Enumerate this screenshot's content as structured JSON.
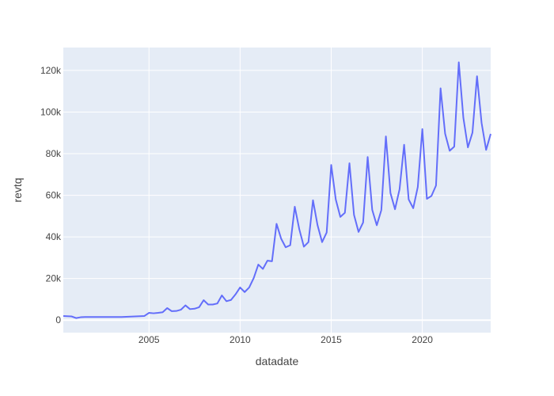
{
  "chart_data": {
    "type": "line",
    "title": "",
    "xlabel": "datadate",
    "ylabel": "revtq",
    "xlim": [
      2000.3,
      2023.75
    ],
    "ylim": [
      -6000,
      131000
    ],
    "x_ticks": [
      2005,
      2010,
      2015,
      2020
    ],
    "x_tick_labels": [
      "2005",
      "2010",
      "2015",
      "2020"
    ],
    "y_ticks": [
      0,
      20000,
      40000,
      60000,
      80000,
      100000,
      120000
    ],
    "y_tick_labels": [
      "0",
      "20k",
      "40k",
      "60k",
      "80k",
      "100k",
      "120k"
    ],
    "grid": true,
    "legend": "none",
    "colors": {
      "line": "#636efa",
      "plot_bg": "#e5ecf6",
      "grid": "#ffffff"
    },
    "series": [
      {
        "x": [
          2000.3,
          2000.5,
          2000.75,
          2001.0,
          2001.25,
          2001.5,
          2001.75,
          2002.0,
          2002.25,
          2002.5,
          2002.75,
          2003.0,
          2003.25,
          2003.5,
          2003.75,
          2004.0,
          2004.25,
          2004.5,
          2004.75,
          2005.0,
          2005.25,
          2005.5,
          2005.75,
          2006.0,
          2006.25,
          2006.5,
          2006.75,
          2007.0,
          2007.25,
          2007.5,
          2007.75,
          2008.0,
          2008.25,
          2008.5,
          2008.75,
          2009.0,
          2009.25,
          2009.5,
          2009.75,
          2010.0,
          2010.25,
          2010.5,
          2010.75,
          2011.0,
          2011.25,
          2011.5,
          2011.75,
          2012.0,
          2012.25,
          2012.5,
          2012.75,
          2013.0,
          2013.25,
          2013.5,
          2013.75,
          2014.0,
          2014.25,
          2014.5,
          2014.75,
          2015.0,
          2015.25,
          2015.5,
          2015.75,
          2016.0,
          2016.25,
          2016.5,
          2016.75,
          2017.0,
          2017.25,
          2017.5,
          2017.75,
          2018.0,
          2018.25,
          2018.5,
          2018.75,
          2019.0,
          2019.25,
          2019.5,
          2019.75,
          2020.0,
          2020.25,
          2020.5,
          2020.75,
          2021.0,
          2021.25,
          2021.5,
          2021.75,
          2022.0,
          2022.25,
          2022.5,
          2022.75,
          2023.0,
          2023.25,
          2023.5,
          2023.75
        ],
        "y": [
          2000,
          1900,
          1800,
          1000,
          1400,
          1500,
          1500,
          1500,
          1500,
          1500,
          1500,
          1500,
          1500,
          1500,
          1600,
          1700,
          1800,
          1900,
          2000,
          3500,
          3300,
          3500,
          3800,
          5800,
          4300,
          4400,
          5000,
          7100,
          5300,
          5500,
          6200,
          9600,
          7500,
          7500,
          8000,
          11900,
          9100,
          9700,
          12400,
          15700,
          13500,
          15700,
          20300,
          26700,
          24600,
          28600,
          28300,
          46300,
          39200,
          35000,
          36000,
          54500,
          43600,
          35300,
          37500,
          57600,
          45600,
          37500,
          42100,
          74600,
          58000,
          49600,
          51600,
          75400,
          50600,
          42400,
          46900,
          78400,
          53000,
          45600,
          52900,
          88300,
          61100,
          53300,
          62900,
          84300,
          58000,
          53800,
          64000,
          91800,
          58300,
          59700,
          64700,
          111400,
          89600,
          81400,
          83400,
          123900,
          97300,
          83000,
          90100,
          117200,
          94800,
          81800,
          89500
        ]
      }
    ]
  }
}
